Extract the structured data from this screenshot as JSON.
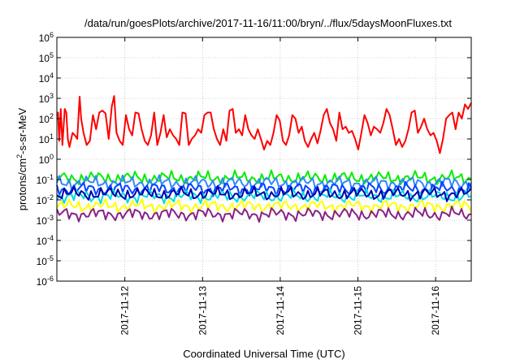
{
  "chart_data": {
    "type": "line",
    "title": "/data/run/goesPlots/archive/2017-11-16/11:00/bryn/../flux/5daysMoonFluxes.txt",
    "xlabel": "Coordinated Universal Time (UTC)",
    "ylabel": {
      "base": "protons/cm",
      "sup": "2",
      "rest": "-s-sr-MeV"
    },
    "y_scale": "log",
    "ylim": [
      1e-06,
      1000000.0
    ],
    "y_ticks": [
      {
        "base": "10",
        "exp": "-6"
      },
      {
        "base": "10",
        "exp": "-5"
      },
      {
        "base": "10",
        "exp": "-4"
      },
      {
        "base": "10",
        "exp": "-3"
      },
      {
        "base": "10",
        "exp": "-2"
      },
      {
        "base": "10",
        "exp": "-1"
      },
      {
        "base": "10",
        "exp": "0"
      },
      {
        "base": "10",
        "exp": "1"
      },
      {
        "base": "10",
        "exp": "2"
      },
      {
        "base": "10",
        "exp": "3"
      },
      {
        "base": "10",
        "exp": "4"
      },
      {
        "base": "10",
        "exp": "5"
      },
      {
        "base": "10",
        "exp": "6"
      }
    ],
    "xlim": [
      "2017-11-11 03:00",
      "2017-11-16 11:00"
    ],
    "x_ticks": [
      "2017-11-12",
      "2017-11-13",
      "2017-11-14",
      "2017-11-15",
      "2017-11-16"
    ],
    "grid": true,
    "legend": "none",
    "series": [
      {
        "color": "#ff0000",
        "values_approx": [
          [
            0.0,
            150
          ],
          [
            0.15,
            200
          ],
          [
            0.3,
            8
          ],
          [
            0.5,
            300
          ],
          [
            0.7,
            5
          ],
          [
            1.0,
            300
          ],
          [
            1.2,
            200
          ],
          [
            1.4,
            10
          ],
          [
            1.6,
            4
          ],
          [
            2.0,
            20
          ],
          [
            2.3,
            15
          ],
          [
            2.6,
            10
          ],
          [
            2.9,
            1200
          ],
          [
            3.1,
            100
          ],
          [
            3.4,
            20
          ],
          [
            3.8,
            5
          ],
          [
            4.2,
            8
          ],
          [
            4.6,
            150
          ],
          [
            5.0,
            30
          ],
          [
            5.4,
            200
          ],
          [
            5.8,
            250
          ],
          [
            6.2,
            180
          ],
          [
            6.6,
            10
          ],
          [
            7.0,
            400
          ],
          [
            7.3,
            1300
          ],
          [
            7.6,
            20
          ],
          [
            8.0,
            8
          ],
          [
            8.4,
            5
          ],
          [
            8.8,
            150
          ],
          [
            9.2,
            30
          ],
          [
            9.6,
            15
          ],
          [
            10.0,
            200
          ],
          [
            10.4,
            180
          ],
          [
            10.8,
            30
          ],
          [
            11.2,
            8
          ],
          [
            11.6,
            5
          ],
          [
            12.0,
            15
          ],
          [
            12.4,
            200
          ],
          [
            12.8,
            5
          ],
          [
            13.2,
            20
          ],
          [
            13.6,
            150
          ],
          [
            14.0,
            12
          ],
          [
            14.4,
            30
          ],
          [
            14.8,
            15
          ],
          [
            15.2,
            10
          ],
          [
            15.6,
            5
          ],
          [
            16.0,
            200
          ],
          [
            16.4,
            180
          ],
          [
            16.8,
            5
          ],
          [
            17.2,
            10
          ],
          [
            17.6,
            15
          ],
          [
            18.0,
            30
          ],
          [
            18.4,
            20
          ],
          [
            18.8,
            150
          ],
          [
            19.2,
            200
          ],
          [
            19.6,
            200
          ],
          [
            20.0,
            30
          ],
          [
            20.4,
            10
          ],
          [
            20.8,
            5
          ],
          [
            21.2,
            30
          ],
          [
            21.6,
            8
          ],
          [
            22.0,
            250
          ],
          [
            22.4,
            300
          ],
          [
            22.8,
            20
          ],
          [
            23.2,
            30
          ],
          [
            23.6,
            15
          ],
          [
            24.0,
            150
          ],
          [
            24.4,
            30
          ],
          [
            24.8,
            15
          ],
          [
            25.2,
            10
          ],
          [
            25.6,
            30
          ],
          [
            26.0,
            10
          ],
          [
            26.4,
            3
          ],
          [
            26.8,
            8
          ],
          [
            27.2,
            5
          ],
          [
            27.6,
            20
          ],
          [
            28.0,
            150
          ],
          [
            28.4,
            80
          ],
          [
            28.8,
            8
          ],
          [
            29.2,
            5
          ],
          [
            29.6,
            15
          ],
          [
            30.0,
            150
          ],
          [
            30.4,
            100
          ],
          [
            30.8,
            20
          ],
          [
            31.2,
            40
          ],
          [
            31.6,
            8
          ],
          [
            32.0,
            4
          ],
          [
            32.4,
            10
          ],
          [
            32.8,
            20
          ],
          [
            33.2,
            6
          ],
          [
            33.6,
            25
          ],
          [
            34.0,
            150
          ],
          [
            34.4,
            300
          ],
          [
            34.8,
            60
          ],
          [
            35.2,
            30
          ],
          [
            35.6,
            8
          ],
          [
            36.0,
            200
          ],
          [
            36.4,
            30
          ],
          [
            36.8,
            40
          ],
          [
            37.2,
            20
          ],
          [
            37.6,
            25
          ],
          [
            38.0,
            10
          ],
          [
            38.4,
            3
          ],
          [
            38.8,
            20
          ],
          [
            39.2,
            150
          ],
          [
            39.6,
            60
          ],
          [
            40.0,
            15
          ],
          [
            40.4,
            40
          ],
          [
            40.8,
            30
          ],
          [
            41.2,
            20
          ],
          [
            41.6,
            60
          ],
          [
            42.0,
            300
          ],
          [
            42.4,
            150
          ],
          [
            42.8,
            30
          ],
          [
            43.2,
            5
          ],
          [
            43.6,
            10
          ],
          [
            44.0,
            4
          ],
          [
            44.4,
            8
          ],
          [
            44.8,
            30
          ],
          [
            45.2,
            200
          ],
          [
            45.6,
            250
          ],
          [
            46.0,
            20
          ],
          [
            46.4,
            40
          ],
          [
            46.8,
            100
          ],
          [
            47.2,
            30
          ],
          [
            47.6,
            15
          ],
          [
            48.0,
            20
          ],
          [
            48.4,
            8
          ],
          [
            48.8,
            2
          ],
          [
            49.2,
            10
          ],
          [
            49.6,
            100
          ],
          [
            50.0,
            150
          ],
          [
            50.4,
            200
          ],
          [
            50.8,
            30
          ],
          [
            51.2,
            200
          ],
          [
            51.6,
            100
          ],
          [
            52.0,
            500
          ],
          [
            52.4,
            300
          ],
          [
            52.8,
            600
          ]
        ]
      },
      {
        "color": "#00ee00",
        "level": 0.12
      },
      {
        "color": "#3388ff",
        "level": 0.07
      },
      {
        "color": "#0044ff",
        "level": 0.035
      },
      {
        "color": "#00dddd",
        "level": 0.015
      },
      {
        "color": "#0000aa",
        "level": 0.02
      },
      {
        "color": "#ffff00",
        "level": 0.005
      },
      {
        "color": "#882288",
        "level": 0.002
      }
    ]
  }
}
